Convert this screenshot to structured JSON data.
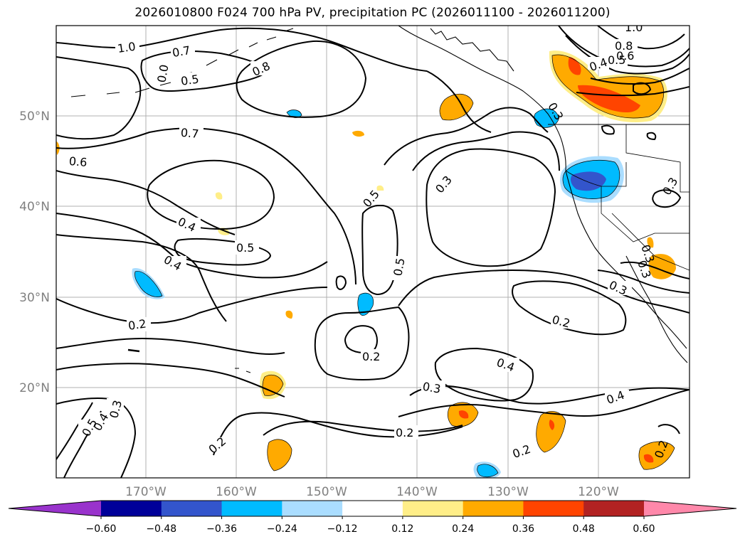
{
  "title": "2026010800 F024 700 hPa PV, precipitation PC (2026011100 - 2026011200)",
  "map": {
    "lat_labels": [
      "50°N",
      "40°N",
      "30°N",
      "20°N"
    ],
    "lon_labels": [
      "170°W",
      "160°W",
      "150°W",
      "140°W",
      "130°W",
      "120°W"
    ],
    "contour_labels": [
      "1.0",
      "0.7",
      "0.5",
      "0.8",
      "0.7",
      "0.6",
      "0.4",
      "0.5",
      "0.4",
      "0.2",
      "0.5",
      "0.5",
      "0.2",
      "0.3",
      "0.4",
      "0.3",
      "0.2",
      "0.2",
      "0.4",
      "0.3",
      "0.5",
      "0.4",
      "0.3",
      "0.2",
      "0.2",
      "1.0",
      "0.8",
      "0.6",
      "0.5",
      "0.4",
      "0.3",
      "0.3",
      "0.3",
      "0.2",
      "0.3",
      "0.0"
    ]
  },
  "colorbar": {
    "ticks": [
      "−0.60",
      "−0.48",
      "−0.36",
      "−0.24",
      "−0.12",
      "0.12",
      "0.24",
      "0.36",
      "0.48",
      "0.60"
    ],
    "colors": [
      "#9933cc",
      "#000099",
      "#3355cc",
      "#00bbff",
      "#aaddff",
      "#ffffff",
      "#ffee88",
      "#ffaa00",
      "#ff4400",
      "#b22222",
      "#ff88aa"
    ]
  }
}
